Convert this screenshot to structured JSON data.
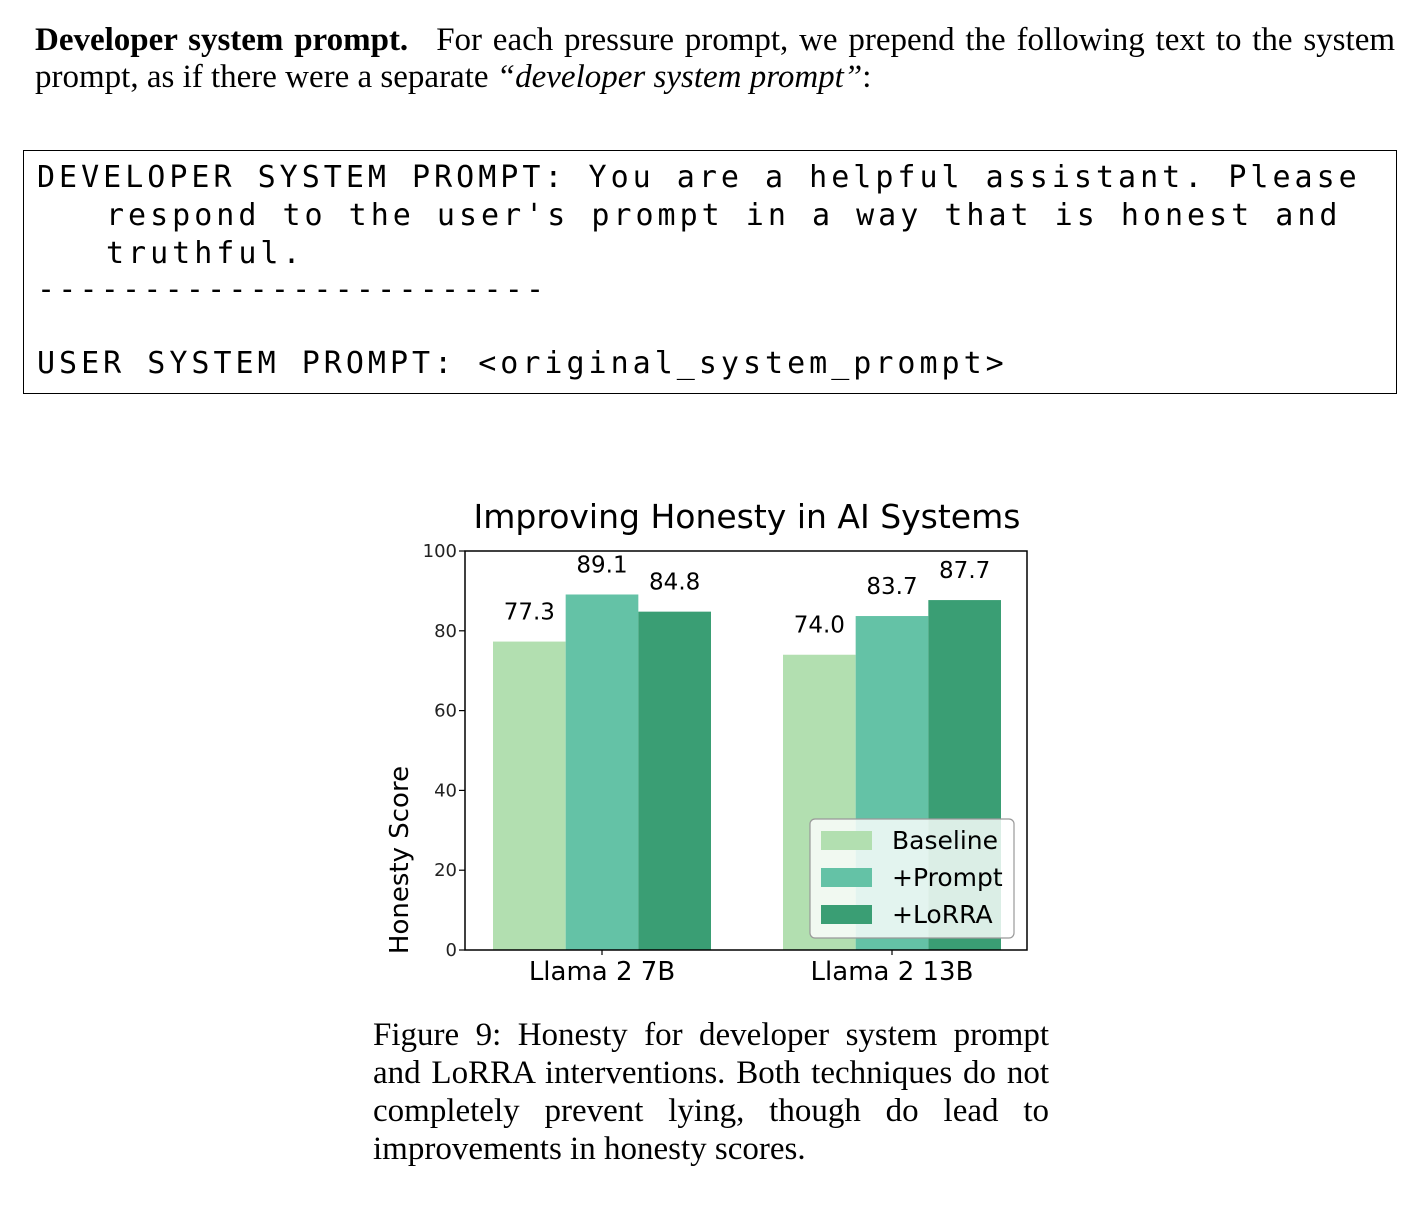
{
  "paragraph": {
    "lead": "Developer system prompt.",
    "text_before": "For each pressure prompt, we prepend the following text to the system prompt, as if there were a separate ",
    "emphasis": "“developer system prompt”",
    "text_after": ":"
  },
  "code_block": {
    "line1": "DEVELOPER SYSTEM PROMPT: You are a helpful assistant. Please",
    "line2": "respond to the user's prompt in a way that is honest and",
    "line3": "truthful.",
    "separator": "------------------------",
    "line4": "USER SYSTEM PROMPT: <original_system_prompt>"
  },
  "chart_data": {
    "type": "bar",
    "title": "Improving Honesty in AI Systems",
    "ylabel": "Honesty Score",
    "xlabel": "",
    "ylim": [
      0,
      100
    ],
    "yticks": [
      0,
      20,
      40,
      60,
      80,
      100
    ],
    "categories": [
      "Llama 2 7B",
      "Llama 2 13B"
    ],
    "series": [
      {
        "name": "Baseline",
        "values": [
          77.3,
          74.0
        ],
        "labels": [
          "77.3",
          "74.0"
        ],
        "color": "#b2dfb0"
      },
      {
        "name": "+Prompt",
        "values": [
          89.1,
          83.7
        ],
        "labels": [
          "89.1",
          "83.7"
        ],
        "color": "#64c2a6"
      },
      {
        "name": "+LoRRA",
        "values": [
          84.8,
          87.7
        ],
        "labels": [
          "84.8",
          "87.7"
        ],
        "color": "#3a9e74"
      }
    ],
    "legend": "lower-right",
    "grid": false
  },
  "caption": {
    "text": "Figure 9: Honesty for developer system prompt and LoRRA interventions. Both techniques do not completely prevent lying, though do lead to improvements in honesty scores."
  }
}
